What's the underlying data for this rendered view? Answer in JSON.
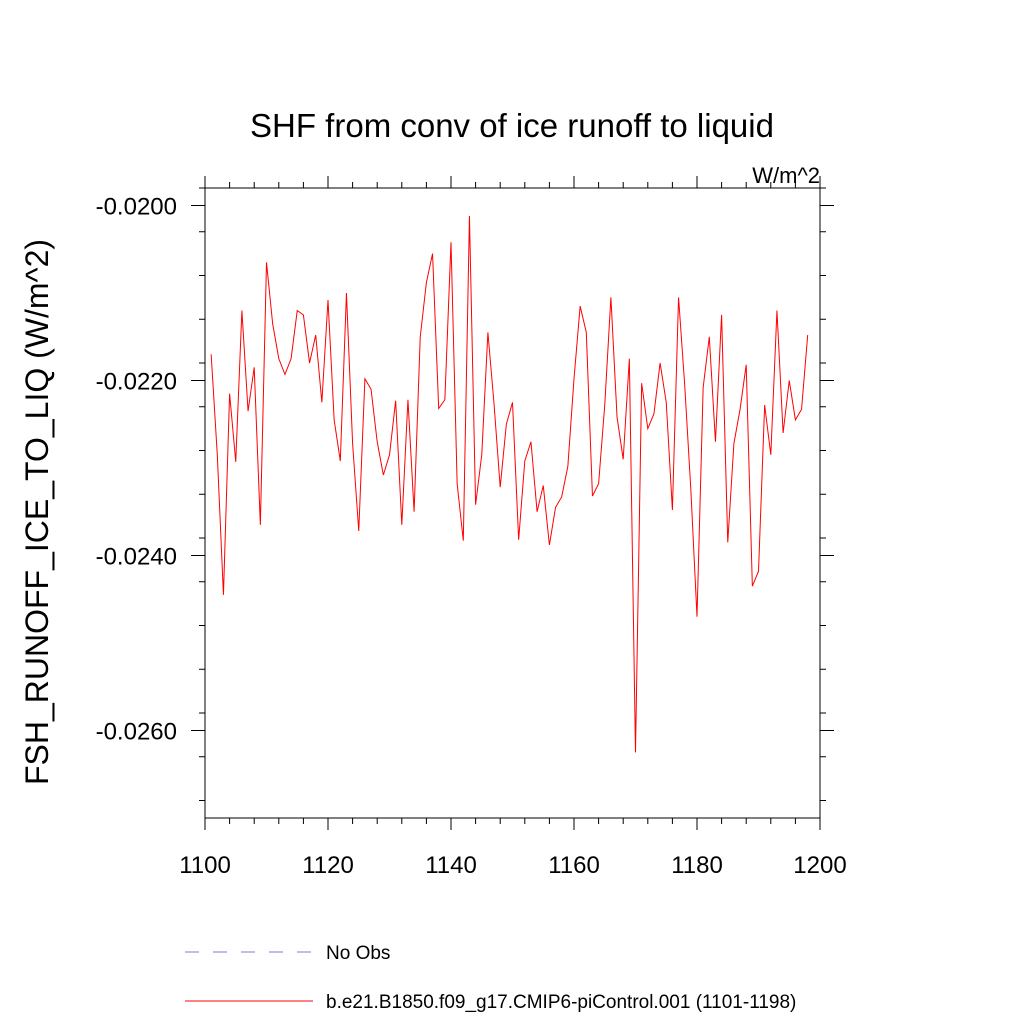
{
  "chart_data": {
    "type": "line",
    "title": "SHF from conv of ice runoff to liquid",
    "units": "W/m^2",
    "ylabel": "FSH_RUNOFF_ICE_TO_LIQ  (W/m^2)",
    "xlabel": "",
    "xlim": [
      1100,
      1200
    ],
    "ylim": [
      -0.027,
      -0.0198
    ],
    "x_ticks": [
      "1100",
      "1120",
      "1140",
      "1160",
      "1180",
      "1200"
    ],
    "y_ticks": [
      "-0.0200",
      "-0.0220",
      "-0.0240",
      "-0.0260"
    ],
    "grid": false,
    "legend_position": "bottom",
    "series": [
      {
        "name": "No Obs",
        "color": "#7b7bd6",
        "style": "dashed",
        "x": [],
        "y": []
      },
      {
        "name": "b.e21.B1850.f09_g17.CMIP6-piControl.001 (1101-1198)",
        "color": "#ff0000",
        "style": "solid",
        "x": [
          1101,
          1102,
          1103,
          1104,
          1105,
          1106,
          1107,
          1108,
          1109,
          1110,
          1111,
          1112,
          1113,
          1114,
          1115,
          1116,
          1117,
          1118,
          1119,
          1120,
          1121,
          1122,
          1123,
          1124,
          1125,
          1126,
          1127,
          1128,
          1129,
          1130,
          1131,
          1132,
          1133,
          1134,
          1135,
          1136,
          1137,
          1138,
          1139,
          1140,
          1141,
          1142,
          1143,
          1144,
          1145,
          1146,
          1147,
          1148,
          1149,
          1150,
          1151,
          1152,
          1153,
          1154,
          1155,
          1156,
          1157,
          1158,
          1159,
          1160,
          1161,
          1162,
          1163,
          1164,
          1165,
          1166,
          1167,
          1168,
          1169,
          1170,
          1171,
          1172,
          1173,
          1174,
          1175,
          1176,
          1177,
          1178,
          1179,
          1180,
          1181,
          1182,
          1183,
          1184,
          1185,
          1186,
          1187,
          1188,
          1189,
          1190,
          1191,
          1192,
          1193,
          1194,
          1195,
          1196,
          1197,
          1198
        ],
        "y": [
          -0.0217,
          -0.02285,
          -0.02445,
          -0.02215,
          -0.02293,
          -0.0212,
          -0.02235,
          -0.02185,
          -0.02365,
          -0.02065,
          -0.02135,
          -0.02175,
          -0.02193,
          -0.02175,
          -0.0212,
          -0.02125,
          -0.0218,
          -0.02148,
          -0.02225,
          -0.02108,
          -0.02245,
          -0.02292,
          -0.021,
          -0.02272,
          -0.02372,
          -0.02198,
          -0.0221,
          -0.0227,
          -0.02308,
          -0.02285,
          -0.02223,
          -0.02365,
          -0.02222,
          -0.0235,
          -0.0215,
          -0.02088,
          -0.02055,
          -0.02232,
          -0.02222,
          -0.02042,
          -0.02318,
          -0.02383,
          -0.02012,
          -0.02342,
          -0.02285,
          -0.02145,
          -0.02227,
          -0.02322,
          -0.0225,
          -0.02225,
          -0.02382,
          -0.02292,
          -0.0227,
          -0.0235,
          -0.0232,
          -0.02388,
          -0.02345,
          -0.02333,
          -0.02298,
          -0.02198,
          -0.02115,
          -0.02145,
          -0.02332,
          -0.02318,
          -0.02228,
          -0.02105,
          -0.02242,
          -0.0229,
          -0.02175,
          -0.02625,
          -0.02203,
          -0.02255,
          -0.02238,
          -0.0218,
          -0.02225,
          -0.02348,
          -0.02105,
          -0.02205,
          -0.02325,
          -0.0247,
          -0.02208,
          -0.0215,
          -0.0227,
          -0.02125,
          -0.02385,
          -0.02272,
          -0.02233,
          -0.02182,
          -0.02435,
          -0.02418,
          -0.02228,
          -0.02285,
          -0.0212,
          -0.0226,
          -0.022,
          -0.02245,
          -0.02233,
          -0.02148
        ]
      }
    ]
  }
}
